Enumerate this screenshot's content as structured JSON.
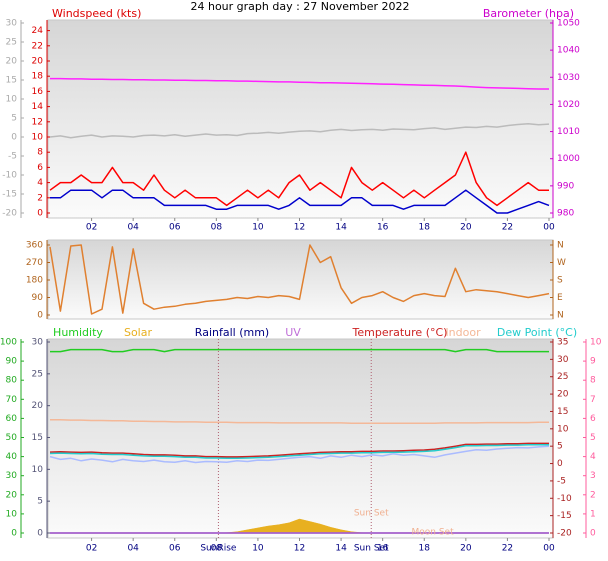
{
  "chart_data": [
    {
      "type": "line",
      "title": "24 hour graph day : 27 November 2022",
      "x": [
        0,
        0.5,
        1,
        1.5,
        2,
        2.5,
        3,
        3.5,
        4,
        4.5,
        5,
        5.5,
        6,
        6.5,
        7,
        7.5,
        8,
        8.5,
        9,
        9.5,
        10,
        10.5,
        11,
        11.5,
        12,
        12.5,
        13,
        13.5,
        14,
        14.5,
        15,
        15.5,
        16,
        16.5,
        17,
        17.5,
        18,
        18.5,
        19,
        19.5,
        20,
        20.5,
        21,
        21.5,
        22,
        22.5,
        23,
        23.5,
        24
      ],
      "xlim": [
        0,
        24
      ],
      "xticks": [
        {
          "value": 2,
          "label": "02"
        },
        {
          "value": 4,
          "label": "04"
        },
        {
          "value": 6,
          "label": "06"
        },
        {
          "value": 8,
          "label": "08"
        },
        10,
        12,
        14,
        16,
        18,
        20,
        22,
        {
          "value": 24,
          "label": "00"
        }
      ],
      "axes": [
        {
          "side": "left-outer",
          "color": "#aaaaaa",
          "lim": [
            -20,
            30
          ],
          "ticks": [
            30,
            25,
            20,
            15,
            10,
            5,
            0,
            -5,
            -10,
            -15,
            -20
          ]
        },
        {
          "side": "left-inner",
          "color": "#dd0000",
          "label": "Windspeed (kts)",
          "lim": [
            0,
            25
          ],
          "ticks": [
            24,
            22,
            20,
            18,
            16,
            14,
            12,
            10,
            8,
            6,
            4,
            2,
            0
          ]
        },
        {
          "side": "right-inner",
          "color": "#cc00cc",
          "label": "Barometer (hpa)",
          "lim": [
            980,
            1050
          ],
          "ticks": [
            1050,
            1040,
            1030,
            1020,
            1010,
            1000,
            990,
            980
          ]
        }
      ],
      "series": [
        {
          "axis": 0,
          "color": "#bbbbbb",
          "values": [
            0,
            0.3,
            -0.2,
            0.2,
            0.5,
            0,
            0.3,
            0.2,
            0,
            0.4,
            0.5,
            0.3,
            0.6,
            0.2,
            0.5,
            0.8,
            0.5,
            0.6,
            0.4,
            0.9,
            1,
            1.2,
            1,
            1.3,
            1.5,
            1.6,
            1.4,
            1.8,
            2,
            1.7,
            1.9,
            2,
            1.8,
            2.1,
            2,
            1.9,
            2.2,
            2.4,
            2,
            2.3,
            2.6,
            2.5,
            2.8,
            2.6,
            3,
            3.3,
            3.5,
            3.2,
            3.4
          ]
        },
        {
          "axis": 2,
          "color": "#ff22ff",
          "values": [
            1029.5,
            1029.5,
            1029.4,
            1029.4,
            1029.3,
            1029.3,
            1029.2,
            1029.2,
            1029.1,
            1029.1,
            1029.0,
            1029.0,
            1028.9,
            1028.9,
            1028.8,
            1028.8,
            1028.7,
            1028.7,
            1028.6,
            1028.6,
            1028.5,
            1028.4,
            1028.3,
            1028.3,
            1028.2,
            1028.1,
            1028.0,
            1028.0,
            1027.9,
            1027.8,
            1027.7,
            1027.6,
            1027.5,
            1027.4,
            1027.3,
            1027.2,
            1027.1,
            1027.0,
            1026.9,
            1026.8,
            1026.6,
            1026.4,
            1026.2,
            1026.1,
            1026.0,
            1025.9,
            1025.8,
            1025.7,
            1025.7
          ]
        },
        {
          "axis": 1,
          "color": "#ff0000",
          "values": [
            3,
            4,
            4,
            5,
            4,
            4,
            6,
            4,
            4,
            3,
            5,
            3,
            2,
            3,
            2,
            2,
            2,
            1,
            2,
            3,
            2,
            3,
            2,
            4,
            5,
            3,
            4,
            3,
            2,
            6,
            4,
            3,
            4,
            3,
            2,
            3,
            2,
            3,
            4,
            5,
            8,
            4,
            2,
            1,
            2,
            3,
            4,
            3,
            3
          ]
        },
        {
          "axis": 1,
          "color": "#0000cc",
          "values": [
            2,
            2,
            3,
            3,
            3,
            2,
            3,
            3,
            2,
            2,
            2,
            1,
            1,
            1,
            1,
            1,
            0.5,
            0.5,
            1,
            1,
            1,
            1,
            0.5,
            1,
            2,
            1,
            1,
            1,
            1,
            2,
            2,
            1,
            1,
            1,
            0.5,
            1,
            1,
            1,
            1,
            2,
            3,
            2,
            1,
            0,
            0,
            0.5,
            1,
            1.5,
            1
          ]
        }
      ]
    },
    {
      "type": "line",
      "x": [
        0,
        0.5,
        1,
        1.5,
        2,
        2.5,
        3,
        3.5,
        4,
        4.5,
        5,
        5.5,
        6,
        6.5,
        7,
        7.5,
        8,
        8.5,
        9,
        9.5,
        10,
        10.5,
        11,
        11.5,
        12,
        12.5,
        13,
        13.5,
        14,
        14.5,
        15,
        15.5,
        16,
        16.5,
        17,
        17.5,
        18,
        18.5,
        19,
        19.5,
        20,
        20.5,
        21,
        21.5,
        22,
        22.5,
        23,
        23.5,
        24
      ],
      "xlim": [
        0,
        24
      ],
      "axes": [
        {
          "side": "left-inner",
          "color": "#b0641e",
          "lim": [
            0,
            360
          ],
          "ticks": [
            360,
            270,
            180,
            90,
            0
          ]
        },
        {
          "side": "right-inner",
          "color": "#b0641e",
          "lim": [
            0,
            360
          ],
          "ticks": [
            {
              "value": 360,
              "label": "N"
            },
            {
              "value": 270,
              "label": "W"
            },
            {
              "value": 180,
              "label": "S"
            },
            {
              "value": 90,
              "label": "E"
            },
            {
              "value": 0,
              "label": "N"
            }
          ]
        }
      ],
      "series": [
        {
          "axis": 0,
          "color": "#e08030",
          "values": [
            350,
            20,
            355,
            360,
            5,
            30,
            350,
            10,
            340,
            60,
            30,
            40,
            45,
            55,
            60,
            70,
            75,
            80,
            90,
            85,
            95,
            90,
            100,
            95,
            80,
            360,
            270,
            300,
            140,
            60,
            90,
            100,
            120,
            90,
            70,
            100,
            110,
            100,
            95,
            240,
            120,
            130,
            125,
            120,
            110,
            100,
            90,
            100,
            110
          ]
        }
      ]
    },
    {
      "type": "line",
      "x": [
        0,
        0.5,
        1,
        1.5,
        2,
        2.5,
        3,
        3.5,
        4,
        4.5,
        5,
        5.5,
        6,
        6.5,
        7,
        7.5,
        8,
        8.5,
        9,
        9.5,
        10,
        10.5,
        11,
        11.5,
        12,
        12.5,
        13,
        13.5,
        14,
        14.5,
        15,
        15.5,
        16,
        16.5,
        17,
        17.5,
        18,
        18.5,
        19,
        19.5,
        20,
        20.5,
        21,
        21.5,
        22,
        22.5,
        23,
        23.5,
        24
      ],
      "xlim": [
        0,
        24
      ],
      "xticks": [
        {
          "value": 2,
          "label": "02"
        },
        {
          "value": 4,
          "label": "04"
        },
        {
          "value": 6,
          "label": "06"
        },
        {
          "value": 8,
          "label": "08"
        },
        10,
        12,
        14,
        16,
        18,
        20,
        22,
        {
          "value": 24,
          "label": "00"
        }
      ],
      "markers": [
        {
          "label": "SunRise",
          "x": 8.1
        },
        {
          "label": "Sun Set",
          "x": 15.45
        }
      ],
      "annotations": [
        {
          "label": "Sun Set",
          "x": 15.45
        },
        {
          "label": "Moon Set",
          "x": 18.4
        }
      ],
      "axes": [
        {
          "side": "left-outer",
          "color": "#22aa22",
          "lim": [
            0,
            100
          ],
          "ticks": [
            100,
            90,
            80,
            70,
            60,
            50,
            40,
            30,
            20,
            10,
            0
          ]
        },
        {
          "side": "left-inner",
          "color": "#555577",
          "lim": [
            0,
            30
          ],
          "ticks": [
            30,
            25,
            20,
            15,
            10,
            5,
            0
          ]
        },
        {
          "side": "right-inner",
          "color": "#aa2222",
          "lim": [
            -20,
            35
          ],
          "ticks": [
            35,
            30,
            25,
            20,
            15,
            10,
            5,
            0,
            -5,
            -10,
            -15,
            -20
          ]
        },
        {
          "side": "right-outer",
          "color": "#ff5c9d",
          "lim": [
            0,
            10
          ],
          "ticks": [
            10,
            9,
            8,
            7,
            6,
            5,
            4,
            3,
            2,
            1,
            0
          ]
        },
        {
          "lim": [
            0,
            600
          ]
        }
      ],
      "series": [
        {
          "name": "Humidity",
          "axis": 0,
          "color": "#22cc22",
          "values": [
            95,
            95,
            96,
            96,
            96,
            96,
            95,
            95,
            96,
            96,
            96,
            95,
            96,
            96,
            96,
            96,
            96,
            96,
            96,
            96,
            96,
            96,
            96,
            96,
            96,
            96,
            96,
            96,
            96,
            96,
            96,
            96,
            96,
            96,
            96,
            96,
            96,
            96,
            96,
            95,
            96,
            96,
            96,
            95,
            95,
            95,
            95,
            95,
            95
          ]
        },
        {
          "name": "Solar",
          "axis": 4,
          "color": "#e8b020",
          "fill": true,
          "values": [
            0,
            0,
            0,
            0,
            0,
            0,
            0,
            0,
            0,
            0,
            0,
            0,
            0,
            0,
            0,
            0,
            0,
            1,
            4,
            10,
            16,
            22,
            26,
            32,
            44,
            36,
            28,
            18,
            10,
            4,
            1,
            0,
            0,
            0,
            0,
            0,
            0,
            0,
            0,
            0,
            0,
            0,
            0,
            0,
            0,
            0,
            0,
            0,
            0
          ]
        },
        {
          "name": "Rainfall (mm)",
          "axis": 1,
          "color": "#000080",
          "values": [
            0,
            0,
            0,
            0,
            0,
            0,
            0,
            0,
            0,
            0,
            0,
            0,
            0,
            0,
            0,
            0,
            0,
            0,
            0,
            0,
            0,
            0,
            0,
            0,
            0,
            0,
            0,
            0,
            0,
            0,
            0,
            0,
            0,
            0,
            0,
            0,
            0,
            0,
            0,
            0,
            0,
            0,
            0,
            0,
            0,
            0,
            0,
            0,
            0
          ]
        },
        {
          "name": "UV",
          "axis": 3,
          "color": "#c070d8",
          "values": [
            0,
            0,
            0,
            0,
            0,
            0,
            0,
            0,
            0,
            0,
            0,
            0,
            0,
            0,
            0,
            0,
            0,
            0,
            0,
            0,
            0,
            0,
            0,
            0,
            0,
            0,
            0,
            0,
            0,
            0,
            0,
            0,
            0,
            0,
            0,
            0,
            0,
            0,
            0,
            0,
            0,
            0,
            0,
            0,
            0,
            0,
            0,
            0,
            0
          ]
        },
        {
          "name": "Temperature (°C)",
          "axis": 2,
          "color": "#cc2222",
          "values": [
            3.3,
            3.4,
            3.3,
            3.2,
            3.3,
            3.1,
            3.0,
            3.0,
            2.8,
            2.6,
            2.5,
            2.5,
            2.4,
            2.2,
            2.2,
            2.0,
            2.0,
            1.9,
            1.9,
            2.0,
            2.1,
            2.2,
            2.4,
            2.6,
            2.8,
            3.0,
            3.2,
            3.3,
            3.4,
            3.4,
            3.5,
            3.5,
            3.6,
            3.6,
            3.7,
            3.8,
            3.9,
            4.1,
            4.5,
            5.0,
            5.5,
            5.5,
            5.6,
            5.6,
            5.7,
            5.7,
            5.8,
            5.8,
            5.8
          ]
        },
        {
          "name": "Indoor",
          "axis": 2,
          "color": "#f4b898",
          "values": [
            12.6,
            12.6,
            12.5,
            12.5,
            12.4,
            12.4,
            12.3,
            12.3,
            12.2,
            12.2,
            12.1,
            12.1,
            12.0,
            12.0,
            12.0,
            11.9,
            11.9,
            11.9,
            11.8,
            11.8,
            11.8,
            11.8,
            11.7,
            11.7,
            11.7,
            11.7,
            11.7,
            11.7,
            11.7,
            11.6,
            11.6,
            11.6,
            11.6,
            11.6,
            11.6,
            11.6,
            11.6,
            11.6,
            11.7,
            11.7,
            11.7,
            11.7,
            11.8,
            11.8,
            11.8,
            11.8,
            11.8,
            11.9,
            11.9
          ]
        },
        {
          "name": "Dew Point (°C)",
          "axis": 2,
          "color": "#22cccc",
          "values": [
            2.9,
            3.0,
            2.9,
            2.8,
            2.9,
            2.7,
            2.6,
            2.6,
            2.4,
            2.2,
            2.1,
            2.1,
            2.0,
            1.8,
            1.8,
            1.6,
            1.6,
            1.5,
            1.5,
            1.6,
            1.7,
            1.8,
            2.0,
            2.2,
            2.4,
            2.6,
            2.8,
            2.9,
            3.0,
            3.0,
            3.1,
            3.1,
            3.2,
            3.2,
            3.3,
            3.4,
            3.5,
            3.7,
            4.1,
            4.6,
            5.1,
            5.1,
            5.2,
            5.2,
            5.3,
            5.3,
            5.4,
            5.4,
            5.4
          ]
        },
        {
          "axis": 2,
          "color": "#aabbff",
          "values": [
            2.0,
            1.2,
            1.5,
            0.8,
            1.3,
            1.0,
            0.5,
            1.2,
            0.8,
            0.6,
            1.0,
            0.5,
            0.4,
            0.8,
            0.3,
            0.6,
            0.5,
            0.4,
            0.8,
            0.6,
            1.0,
            0.9,
            1.2,
            1.5,
            1.8,
            2.0,
            1.5,
            2.2,
            1.8,
            2.4,
            2.0,
            2.5,
            2.2,
            2.8,
            2.4,
            2.6,
            2.2,
            1.8,
            2.5,
            3.0,
            3.5,
            4.0,
            3.8,
            4.2,
            4.4,
            4.6,
            4.5,
            4.8,
            5.0
          ]
        }
      ]
    }
  ]
}
